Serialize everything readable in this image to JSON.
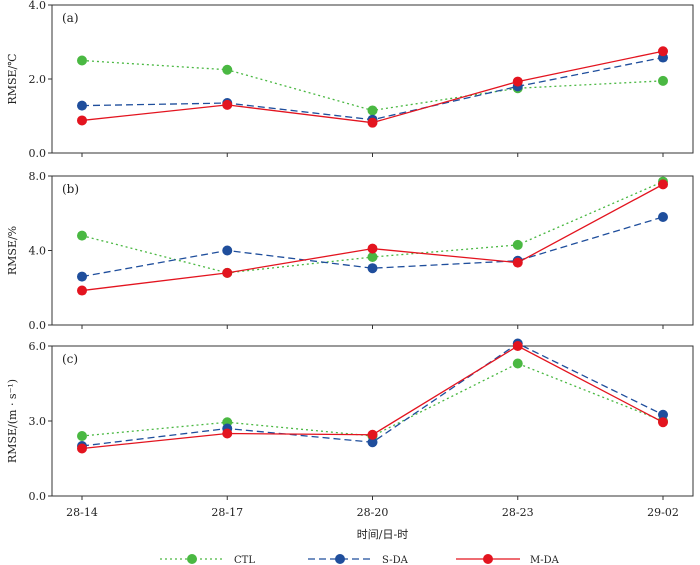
{
  "colors": {
    "CTL": "#4ab842",
    "S-DA": "#1f4e9c",
    "M-DA": "#e3141f",
    "axis": "#333333"
  },
  "xlabel": "时间/日-时",
  "legend": {
    "placement": "bottom-center",
    "items": [
      {
        "label": "CTL",
        "style": "dotted"
      },
      {
        "label": "S-DA",
        "style": "dashed"
      },
      {
        "label": "M-DA",
        "style": "solid"
      }
    ]
  },
  "chart_data": [
    {
      "type": "line",
      "panel": "(a)",
      "ylabel": "RMSE/℃",
      "ylim": [
        0,
        4
      ],
      "yticks": [
        "0.0",
        "2.0",
        "4.0"
      ],
      "yticks_values": [
        0,
        2,
        4
      ],
      "categories": [
        "28-14",
        "28-17",
        "28-20",
        "28-23",
        "29-02"
      ],
      "series": [
        {
          "name": "CTL",
          "values": [
            2.5,
            2.25,
            1.15,
            1.75,
            1.95
          ]
        },
        {
          "name": "S-DA",
          "values": [
            1.28,
            1.35,
            0.9,
            1.8,
            2.58
          ]
        },
        {
          "name": "M-DA",
          "values": [
            0.88,
            1.3,
            0.82,
            1.93,
            2.75
          ]
        }
      ]
    },
    {
      "type": "line",
      "panel": "(b)",
      "ylabel": "RMSE/%",
      "ylim": [
        0,
        8
      ],
      "yticks": [
        "0.0",
        "4.0",
        "8.0"
      ],
      "yticks_values": [
        0,
        4,
        8
      ],
      "categories": [
        "28-14",
        "28-17",
        "28-20",
        "28-23",
        "29-02"
      ],
      "series": [
        {
          "name": "CTL",
          "values": [
            4.8,
            2.8,
            3.65,
            4.3,
            7.7
          ]
        },
        {
          "name": "S-DA",
          "values": [
            2.6,
            4.0,
            3.05,
            3.45,
            5.8
          ]
        },
        {
          "name": "M-DA",
          "values": [
            1.85,
            2.8,
            4.1,
            3.35,
            7.55
          ]
        }
      ]
    },
    {
      "type": "line",
      "panel": "(c)",
      "ylabel": "RMSE/(m · s⁻¹)",
      "ylim": [
        0,
        6
      ],
      "yticks": [
        "0.0",
        "3.0",
        "6.0"
      ],
      "yticks_values": [
        0,
        3,
        6
      ],
      "categories": [
        "28-14",
        "28-17",
        "28-20",
        "28-23",
        "29-02"
      ],
      "series": [
        {
          "name": "CTL",
          "values": [
            2.4,
            2.95,
            2.4,
            5.3,
            3.0
          ]
        },
        {
          "name": "S-DA",
          "values": [
            2.0,
            2.7,
            2.15,
            6.1,
            3.25
          ]
        },
        {
          "name": "M-DA",
          "values": [
            1.9,
            2.5,
            2.45,
            6.0,
            2.95
          ]
        }
      ]
    }
  ]
}
